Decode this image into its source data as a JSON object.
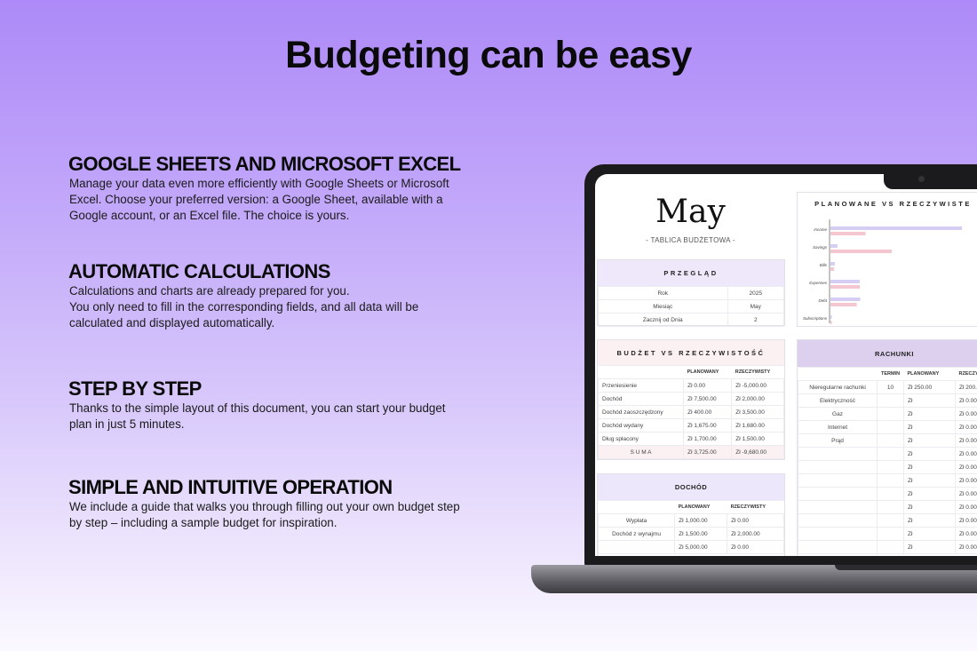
{
  "title": "Budgeting can be easy",
  "sections": [
    {
      "heading": "GOOGLE SHEETS AND MICROSOFT EXCEL",
      "lines": [
        "Manage your data even more efficiently with Google Sheets or Microsoft",
        "Excel. Choose your preferred version: a Google Sheet, available with a",
        "Google account, or an Excel file. The choice is yours."
      ]
    },
    {
      "heading": "AUTOMATIC CALCULATIONS",
      "lines": [
        "Calculations and charts are already prepared for you.",
        "You only need to fill in the corresponding fields, and all data will be",
        "calculated and displayed automatically."
      ]
    },
    {
      "heading": "STEP BY STEP",
      "lines": [
        "Thanks to the simple layout of this document, you can start your budget",
        "plan in just 5 minutes."
      ]
    },
    {
      "heading": "SIMPLE AND INTUITIVE OPERATION",
      "lines": [
        "We include a guide that walks you through filling out your own budget step",
        "by step – including a sample budget for inspiration."
      ]
    }
  ],
  "sheet": {
    "month": "May",
    "subtitle": "- TABLICA BUDŻETOWA -",
    "overview": {
      "title": "PRZEGLĄD",
      "rows": [
        [
          "Rok",
          "2025"
        ],
        [
          "Miesiąc",
          "May"
        ],
        [
          "Zacznij od Dnia",
          "2"
        ]
      ]
    },
    "budget": {
      "title": "BUDŻET VS RZECZYWISTOŚĆ",
      "headers": [
        "",
        "PLANOWANY",
        "RZECZYWISTY"
      ],
      "rows": [
        [
          "Przeniesienie",
          "Zł 0.00",
          "Zł -5,000.00"
        ],
        [
          "Dochód",
          "Zł 7,500.00",
          "Zł 2,000.00"
        ],
        [
          "Dochód zaoszczędzony",
          "Zł 400.00",
          "Zł 3,500.00"
        ],
        [
          "Dochód wydany",
          "Zł 1,675.00",
          "Zł 1,680.00"
        ],
        [
          "Dług spłacony",
          "Zł 1,700.00",
          "Zł 1,500.00"
        ]
      ],
      "total": [
        "S U M A",
        "Zł 3,725.00",
        "Zł -9,680.00"
      ]
    },
    "income": {
      "title": "DOCHÓD",
      "headers": [
        "",
        "PLANOWANY",
        "RZECZYWISTY"
      ],
      "rows": [
        [
          "Wypłata",
          "Zł 1,000.00",
          "Zł 0.00"
        ],
        [
          "Dochód z wynajmu",
          "Zł 1,500.00",
          "Zł 2,000.00"
        ],
        [
          "",
          "Zł 5,000.00",
          "Zł 0.00"
        ]
      ]
    },
    "bills": {
      "title": "RACHUNKI",
      "headers": [
        "",
        "TERMIN",
        "PLANOWANY",
        "RZECZYWISTY"
      ],
      "rows": [
        [
          "Nieregularne rachunki",
          "10",
          "Zł  250.00",
          "Zł 200.00"
        ],
        [
          "Elektryczność",
          "",
          "Zł",
          "Zł 0.00"
        ],
        [
          "Gaz",
          "",
          "Zł",
          "Zł 0.00"
        ],
        [
          "Internet",
          "",
          "Zł",
          "Zł 0.00"
        ],
        [
          "Prąd",
          "",
          "Zł",
          "Zł 0.00"
        ],
        [
          "",
          "",
          "Zł",
          "Zł 0.00"
        ],
        [
          "",
          "",
          "Zł",
          "Zł 0.00"
        ],
        [
          "",
          "",
          "Zł",
          "Zł 0.00"
        ],
        [
          "",
          "",
          "Zł",
          "Zł 0.00"
        ],
        [
          "",
          "",
          "Zł",
          "Zł 0.00"
        ],
        [
          "",
          "",
          "Zł",
          "Zł 0.00"
        ],
        [
          "",
          "",
          "Zł",
          "Zł 0.00"
        ],
        [
          "",
          "",
          "Zł",
          "Zł 0.00"
        ]
      ]
    }
  },
  "chart_data": {
    "type": "bar",
    "orientation": "horizontal",
    "title": "PLANOWANE VS RZECZYWISTE",
    "categories": [
      "Income",
      "Savings",
      "Bills",
      "Expenses",
      "Debt",
      "Subscriptions"
    ],
    "series": [
      {
        "values": [
          7500,
          400,
          250,
          1675,
          1700,
          0
        ],
        "color": "#d5cdf3"
      },
      {
        "values": [
          2000,
          3500,
          200,
          1680,
          1500,
          0
        ],
        "color": "#f3c6d0"
      }
    ],
    "grid": false
  },
  "colors": {
    "overview_header": "#efe8fb",
    "budget_header": "#fbf1f2",
    "income_header": "#ece7fa",
    "bills_header": "#ddd0ef"
  }
}
